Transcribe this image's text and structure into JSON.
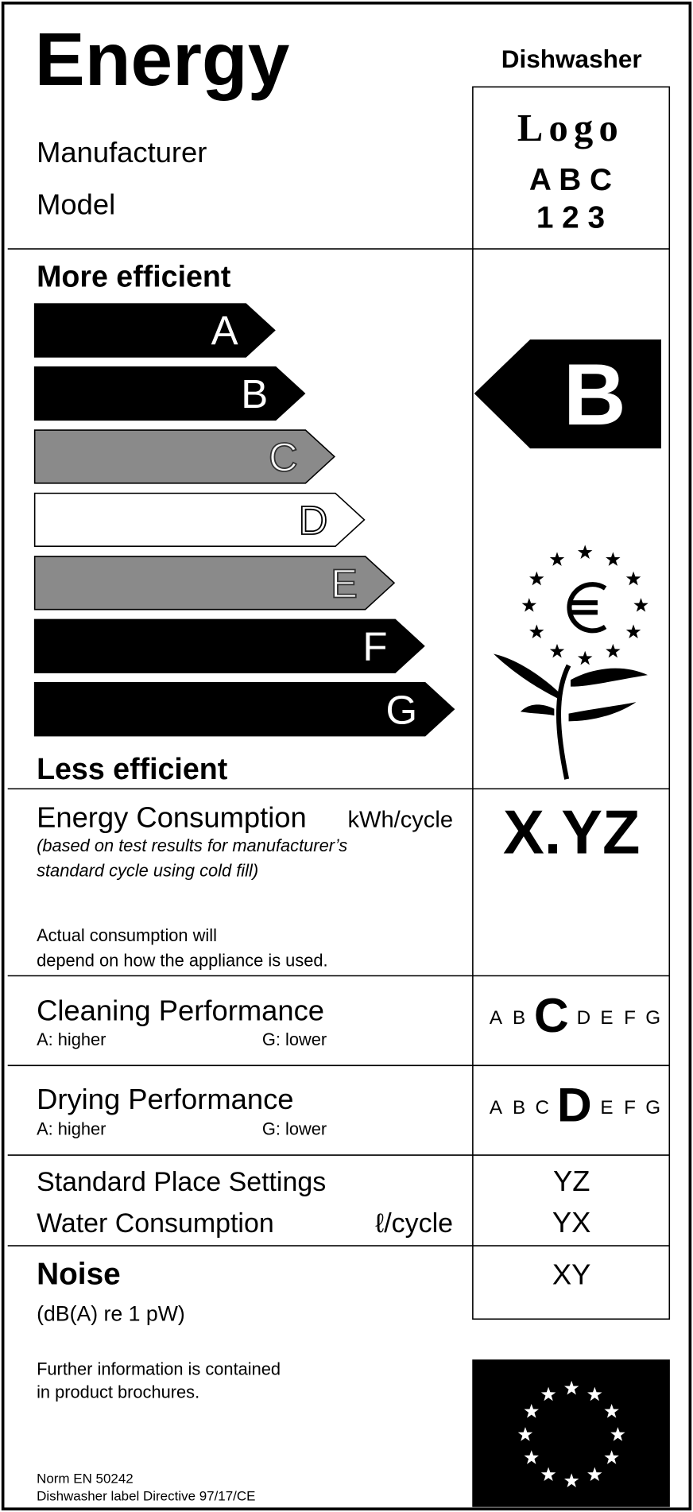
{
  "header": {
    "title": "Energy",
    "appliance": "Dishwasher",
    "manufacturer": "Manufacturer",
    "model": "Model",
    "logo": [
      "Logo",
      "A B C",
      "1 2 3"
    ]
  },
  "efficiency": {
    "top": "More efficient",
    "bottom": "Less efficient",
    "classes": [
      "A",
      "B",
      "C",
      "D",
      "E",
      "F",
      "G"
    ],
    "rating": "B"
  },
  "energy_consumption": {
    "label": "Energy Consumption",
    "unit": "kWh/cycle",
    "note": [
      "(based on test results for manufacturer’s",
      "standard cycle using cold fill)"
    ],
    "remark": [
      "Actual consumption will",
      "depend on how the appliance is used."
    ],
    "value": "X.YZ"
  },
  "cleaning": {
    "label": "Cleaning Performance",
    "high": "A: higher",
    "low": "G: lower",
    "scale": [
      "A",
      "B",
      "C",
      "D",
      "E",
      "F",
      "G"
    ],
    "rating": "C"
  },
  "drying": {
    "label": "Drying Performance",
    "high": "A: higher",
    "low": "G: lower",
    "scale": [
      "A",
      "B",
      "C",
      "D",
      "E",
      "F",
      "G"
    ],
    "rating": "D"
  },
  "place_settings": {
    "label": "Standard Place Settings",
    "value": "YZ"
  },
  "water": {
    "label": "Water Consumption",
    "unit": "ℓ/cycle",
    "value": "YX"
  },
  "noise": {
    "label": "Noise",
    "unit": "(dB(A) re 1 pW)",
    "value": "XY"
  },
  "footer": {
    "info": [
      "Further information is contained",
      "in product brochures."
    ],
    "norm": "Norm EN 50242",
    "directive": "Dishwasher label Directive 97/17/CE"
  }
}
